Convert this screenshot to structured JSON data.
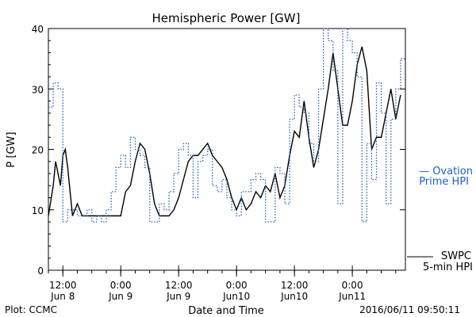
{
  "chart_data": {
    "type": "line",
    "title": "Hemispheric Power [GW]",
    "xlabel": "Date and Time",
    "ylabel": "P [GW]",
    "ylim": [
      0,
      40
    ],
    "xlim": [
      "2016-06-08 09:00",
      "2016-06-11 11:00"
    ],
    "yticks": [
      {
        "value": 0,
        "label": "0"
      },
      {
        "value": 10,
        "label": "10"
      },
      {
        "value": 20,
        "label": "20"
      },
      {
        "value": 30,
        "label": "30"
      },
      {
        "value": 40,
        "label": "40"
      }
    ],
    "xticks": [
      {
        "x": "2016-06-08 12:00",
        "line1": "12:00",
        "line2": "Jun 8"
      },
      {
        "x": "2016-06-09 00:00",
        "line1": "0:00",
        "line2": "Jun 9"
      },
      {
        "x": "2016-06-09 12:00",
        "line1": "12:00",
        "line2": "Jun 9"
      },
      {
        "x": "2016-06-10 00:00",
        "line1": "0:00",
        "line2": "Jun10"
      },
      {
        "x": "2016-06-10 12:00",
        "line1": "12:00",
        "line2": "Jun10"
      },
      {
        "x": "2016-06-11 00:00",
        "line1": "0:00",
        "line2": "Jun11"
      }
    ],
    "legend_placement": "right",
    "series": [
      {
        "name": "SWPC 5-min HPI",
        "legend_line1": "SWPC",
        "legend_line2": "5-min HPI",
        "color": "#000000",
        "style": "solid",
        "points": [
          [
            "2016-06-08 09:00",
            9
          ],
          [
            "2016-06-08 10:00",
            14
          ],
          [
            "2016-06-08 10:30",
            18
          ],
          [
            "2016-06-08 11:00",
            16
          ],
          [
            "2016-06-08 11:30",
            14
          ],
          [
            "2016-06-08 12:00",
            19
          ],
          [
            "2016-06-08 12:30",
            20
          ],
          [
            "2016-06-08 13:00",
            17
          ],
          [
            "2016-06-08 14:00",
            9
          ],
          [
            "2016-06-08 15:00",
            11
          ],
          [
            "2016-06-08 16:00",
            9
          ],
          [
            "2016-06-08 18:00",
            9
          ],
          [
            "2016-06-08 21:00",
            9
          ],
          [
            "2016-06-09 00:00",
            9
          ],
          [
            "2016-06-09 01:00",
            13
          ],
          [
            "2016-06-09 02:00",
            14
          ],
          [
            "2016-06-09 03:00",
            18
          ],
          [
            "2016-06-09 04:00",
            21
          ],
          [
            "2016-06-09 05:00",
            20
          ],
          [
            "2016-06-09 06:00",
            16
          ],
          [
            "2016-06-09 07:00",
            11
          ],
          [
            "2016-06-09 08:00",
            9
          ],
          [
            "2016-06-09 10:00",
            9
          ],
          [
            "2016-06-09 11:00",
            10
          ],
          [
            "2016-06-09 12:00",
            12
          ],
          [
            "2016-06-09 13:00",
            15
          ],
          [
            "2016-06-09 14:00",
            18
          ],
          [
            "2016-06-09 15:00",
            19
          ],
          [
            "2016-06-09 16:00",
            19
          ],
          [
            "2016-06-09 17:00",
            20
          ],
          [
            "2016-06-09 18:00",
            21
          ],
          [
            "2016-06-09 19:00",
            19
          ],
          [
            "2016-06-09 20:00",
            18
          ],
          [
            "2016-06-09 21:00",
            17
          ],
          [
            "2016-06-09 22:00",
            15
          ],
          [
            "2016-06-09 23:00",
            12
          ],
          [
            "2016-06-10 00:00",
            10
          ],
          [
            "2016-06-10 01:00",
            12
          ],
          [
            "2016-06-10 02:00",
            10
          ],
          [
            "2016-06-10 03:00",
            11
          ],
          [
            "2016-06-10 04:00",
            13
          ],
          [
            "2016-06-10 05:00",
            12
          ],
          [
            "2016-06-10 06:00",
            14
          ],
          [
            "2016-06-10 07:00",
            13
          ],
          [
            "2016-06-10 08:00",
            16
          ],
          [
            "2016-06-10 09:00",
            12
          ],
          [
            "2016-06-10 10:00",
            14
          ],
          [
            "2016-06-10 11:00",
            19
          ],
          [
            "2016-06-10 12:00",
            23
          ],
          [
            "2016-06-10 13:00",
            22
          ],
          [
            "2016-06-10 14:00",
            28
          ],
          [
            "2016-06-10 15:00",
            22
          ],
          [
            "2016-06-10 16:00",
            17
          ],
          [
            "2016-06-10 17:00",
            20
          ],
          [
            "2016-06-10 18:00",
            25
          ],
          [
            "2016-06-10 19:00",
            30
          ],
          [
            "2016-06-10 20:00",
            36
          ],
          [
            "2016-06-10 21:00",
            30
          ],
          [
            "2016-06-10 22:00",
            24
          ],
          [
            "2016-06-10 23:00",
            24
          ],
          [
            "2016-06-11 00:00",
            28
          ],
          [
            "2016-06-11 01:00",
            34
          ],
          [
            "2016-06-11 02:00",
            37
          ],
          [
            "2016-06-11 03:00",
            33
          ],
          [
            "2016-06-11 04:00",
            20
          ],
          [
            "2016-06-11 05:00",
            22
          ],
          [
            "2016-06-11 06:00",
            22
          ],
          [
            "2016-06-11 07:00",
            26
          ],
          [
            "2016-06-11 08:00",
            30
          ],
          [
            "2016-06-11 09:00",
            25
          ],
          [
            "2016-06-11 10:00",
            29
          ]
        ]
      },
      {
        "name": "Ovation Prime HPI",
        "legend_line1": "— Ovation",
        "legend_line2": "Prime HPI",
        "color": "#1f5fbf",
        "style": "dotted",
        "points": [
          [
            "2016-06-08 09:00",
            27
          ],
          [
            "2016-06-08 10:00",
            31
          ],
          [
            "2016-06-08 11:00",
            30
          ],
          [
            "2016-06-08 12:00",
            8
          ],
          [
            "2016-06-08 13:00",
            10
          ],
          [
            "2016-06-08 14:00",
            10
          ],
          [
            "2016-06-08 15:00",
            9
          ],
          [
            "2016-06-08 16:00",
            9
          ],
          [
            "2016-06-08 17:00",
            10
          ],
          [
            "2016-06-08 18:00",
            8
          ],
          [
            "2016-06-08 19:00",
            9
          ],
          [
            "2016-06-08 20:00",
            8
          ],
          [
            "2016-06-08 21:00",
            10
          ],
          [
            "2016-06-08 22:00",
            13
          ],
          [
            "2016-06-08 23:00",
            17
          ],
          [
            "2016-06-09 00:00",
            19
          ],
          [
            "2016-06-09 01:00",
            17
          ],
          [
            "2016-06-09 02:00",
            22
          ],
          [
            "2016-06-09 03:00",
            20
          ],
          [
            "2016-06-09 04:00",
            19
          ],
          [
            "2016-06-09 05:00",
            17
          ],
          [
            "2016-06-09 06:00",
            8
          ],
          [
            "2016-06-09 07:00",
            8
          ],
          [
            "2016-06-09 08:00",
            11
          ],
          [
            "2016-06-09 09:00",
            10
          ],
          [
            "2016-06-09 10:00",
            13
          ],
          [
            "2016-06-09 11:00",
            16
          ],
          [
            "2016-06-09 12:00",
            20
          ],
          [
            "2016-06-09 13:00",
            21
          ],
          [
            "2016-06-09 14:00",
            19
          ],
          [
            "2016-06-09 15:00",
            12
          ],
          [
            "2016-06-09 16:00",
            18
          ],
          [
            "2016-06-09 17:00",
            19
          ],
          [
            "2016-06-09 18:00",
            20
          ],
          [
            "2016-06-09 19:00",
            14
          ],
          [
            "2016-06-09 20:00",
            13
          ],
          [
            "2016-06-09 21:00",
            15
          ],
          [
            "2016-06-09 22:00",
            12
          ],
          [
            "2016-06-09 23:00",
            10
          ],
          [
            "2016-06-10 00:00",
            9
          ],
          [
            "2016-06-10 01:00",
            13
          ],
          [
            "2016-06-10 02:00",
            13
          ],
          [
            "2016-06-10 03:00",
            15
          ],
          [
            "2016-06-10 04:00",
            16
          ],
          [
            "2016-06-10 05:00",
            15
          ],
          [
            "2016-06-10 06:00",
            8
          ],
          [
            "2016-06-10 07:00",
            8
          ],
          [
            "2016-06-10 08:00",
            17
          ],
          [
            "2016-06-10 09:00",
            16
          ],
          [
            "2016-06-10 10:00",
            11
          ],
          [
            "2016-06-10 11:00",
            25
          ],
          [
            "2016-06-10 12:00",
            29
          ],
          [
            "2016-06-10 13:00",
            27
          ],
          [
            "2016-06-10 14:00",
            26
          ],
          [
            "2016-06-10 15:00",
            21
          ],
          [
            "2016-06-10 16:00",
            18
          ],
          [
            "2016-06-10 17:00",
            30
          ],
          [
            "2016-06-10 18:00",
            40
          ],
          [
            "2016-06-10 19:00",
            38
          ],
          [
            "2016-06-10 20:00",
            33
          ],
          [
            "2016-06-10 21:00",
            11
          ],
          [
            "2016-06-10 22:00",
            40
          ],
          [
            "2016-06-10 23:00",
            38
          ],
          [
            "2016-06-11 00:00",
            36
          ],
          [
            "2016-06-11 01:00",
            32
          ],
          [
            "2016-06-11 02:00",
            8
          ],
          [
            "2016-06-11 03:00",
            21
          ],
          [
            "2016-06-11 04:00",
            15
          ],
          [
            "2016-06-11 05:00",
            31
          ],
          [
            "2016-06-11 06:00",
            26
          ],
          [
            "2016-06-11 07:00",
            11
          ],
          [
            "2016-06-11 08:00",
            25
          ],
          [
            "2016-06-11 09:00",
            30
          ],
          [
            "2016-06-11 10:00",
            35
          ],
          [
            "2016-06-11 11:00",
            35
          ]
        ]
      }
    ]
  },
  "footer": {
    "left": "Plot: CCMC",
    "right": "2016/06/11 09:50:11"
  }
}
